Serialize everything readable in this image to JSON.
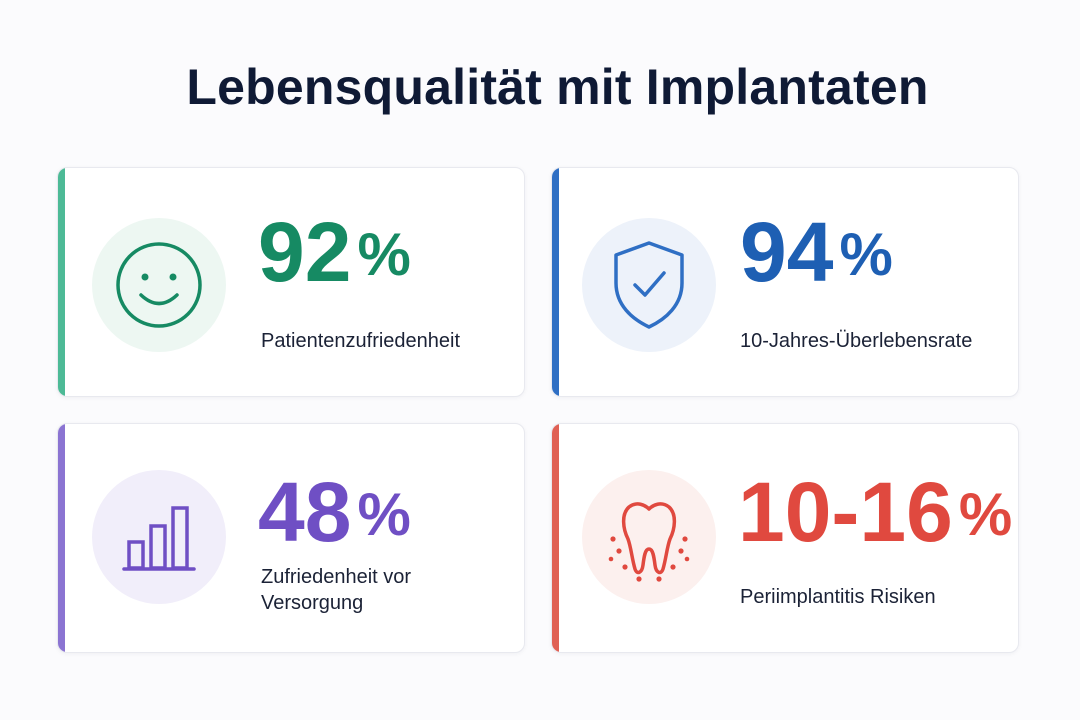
{
  "title": "Lebensqualität mit Implantaten",
  "cards": [
    {
      "value": "92",
      "unit": "%",
      "label": "Patientenzufriedenheit",
      "icon": "smiley-icon",
      "color": "#168a63",
      "accent": "#4dba96",
      "circle": "#edf7f2"
    },
    {
      "value": "94",
      "unit": "%",
      "label": "10-Jahres-Überlebensrate",
      "icon": "shield-check-icon",
      "color": "#1e5fb3",
      "accent": "#2f6fc4",
      "circle": "#edf2fa"
    },
    {
      "value": "48",
      "unit": "%",
      "label": "Zufriedenheit vor Versorgung",
      "icon": "bar-chart-icon",
      "color": "#6f4fc4",
      "accent": "#8b74d2",
      "circle": "#f1eefa"
    },
    {
      "value": "10-16",
      "unit": "%",
      "label": "Periimplantitis Risiken",
      "icon": "tooth-icon",
      "color": "#e0493f",
      "accent": "#e06155",
      "circle": "#fcf0ee"
    }
  ]
}
